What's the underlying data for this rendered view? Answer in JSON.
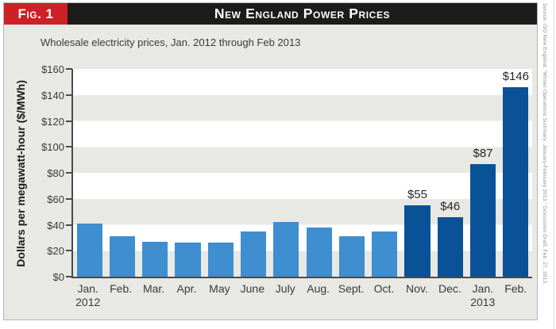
{
  "figure": {
    "tag_label": "Fig. 1",
    "title": "New England Power Prices",
    "subtitle": "Wholesale electricity prices, Jan. 2012 through Feb 2013",
    "source_note": "Source: ISO New England, “Winter Operations Summary: January-February 2013,” Discussion Draft, Feb. 27, 2013.",
    "colors": {
      "tag_bg": "#cb2127",
      "title_bar_bg": "#1d1b1b",
      "panel_bg": "#e8e8e4",
      "band_gray": "#e8e8e4",
      "band_white": "#ffffff",
      "axis": "#4a4a4a",
      "text_dark": "#262626"
    }
  },
  "chart_data": {
    "type": "bar",
    "title": "New England Power Prices",
    "subtitle": "Wholesale electricity prices, Jan. 2012 through Feb 2013",
    "ylabel": "Dollars per megawatt-hour ($/MWh)",
    "xlabel": "",
    "ylim": [
      0,
      160
    ],
    "ytick_step": 20,
    "ytick_labels": [
      "$0",
      "$20",
      "$40",
      "$60",
      "$80",
      "$100",
      "$120",
      "$140",
      "$160"
    ],
    "categories": [
      "Jan.",
      "Feb.",
      "Mar.",
      "Apr.",
      "May",
      "June",
      "July",
      "Aug.",
      "Sept.",
      "Oct.",
      "Nov.",
      "Dec.",
      "Jan.",
      "Feb."
    ],
    "year_labels": [
      {
        "index": 0,
        "label": "2012"
      },
      {
        "index": 12,
        "label": "2013"
      }
    ],
    "series": [
      {
        "name": "Wholesale electricity price ($/MWh)",
        "values": [
          41,
          31,
          27,
          26,
          26,
          35,
          42,
          38,
          31,
          35,
          55,
          46,
          87,
          146
        ]
      }
    ],
    "data_labels": [
      "",
      "",
      "",
      "",
      "",
      "",
      "",
      "",
      "",
      "",
      "$55",
      "$46",
      "$87",
      "$146"
    ],
    "highlight_start_index": 10,
    "bar_colors": {
      "regular": "#3e8ed0",
      "highlight": "#0a5298"
    },
    "grid": "alternating horizontal gray/white bands at $20 intervals",
    "legend": "none"
  }
}
